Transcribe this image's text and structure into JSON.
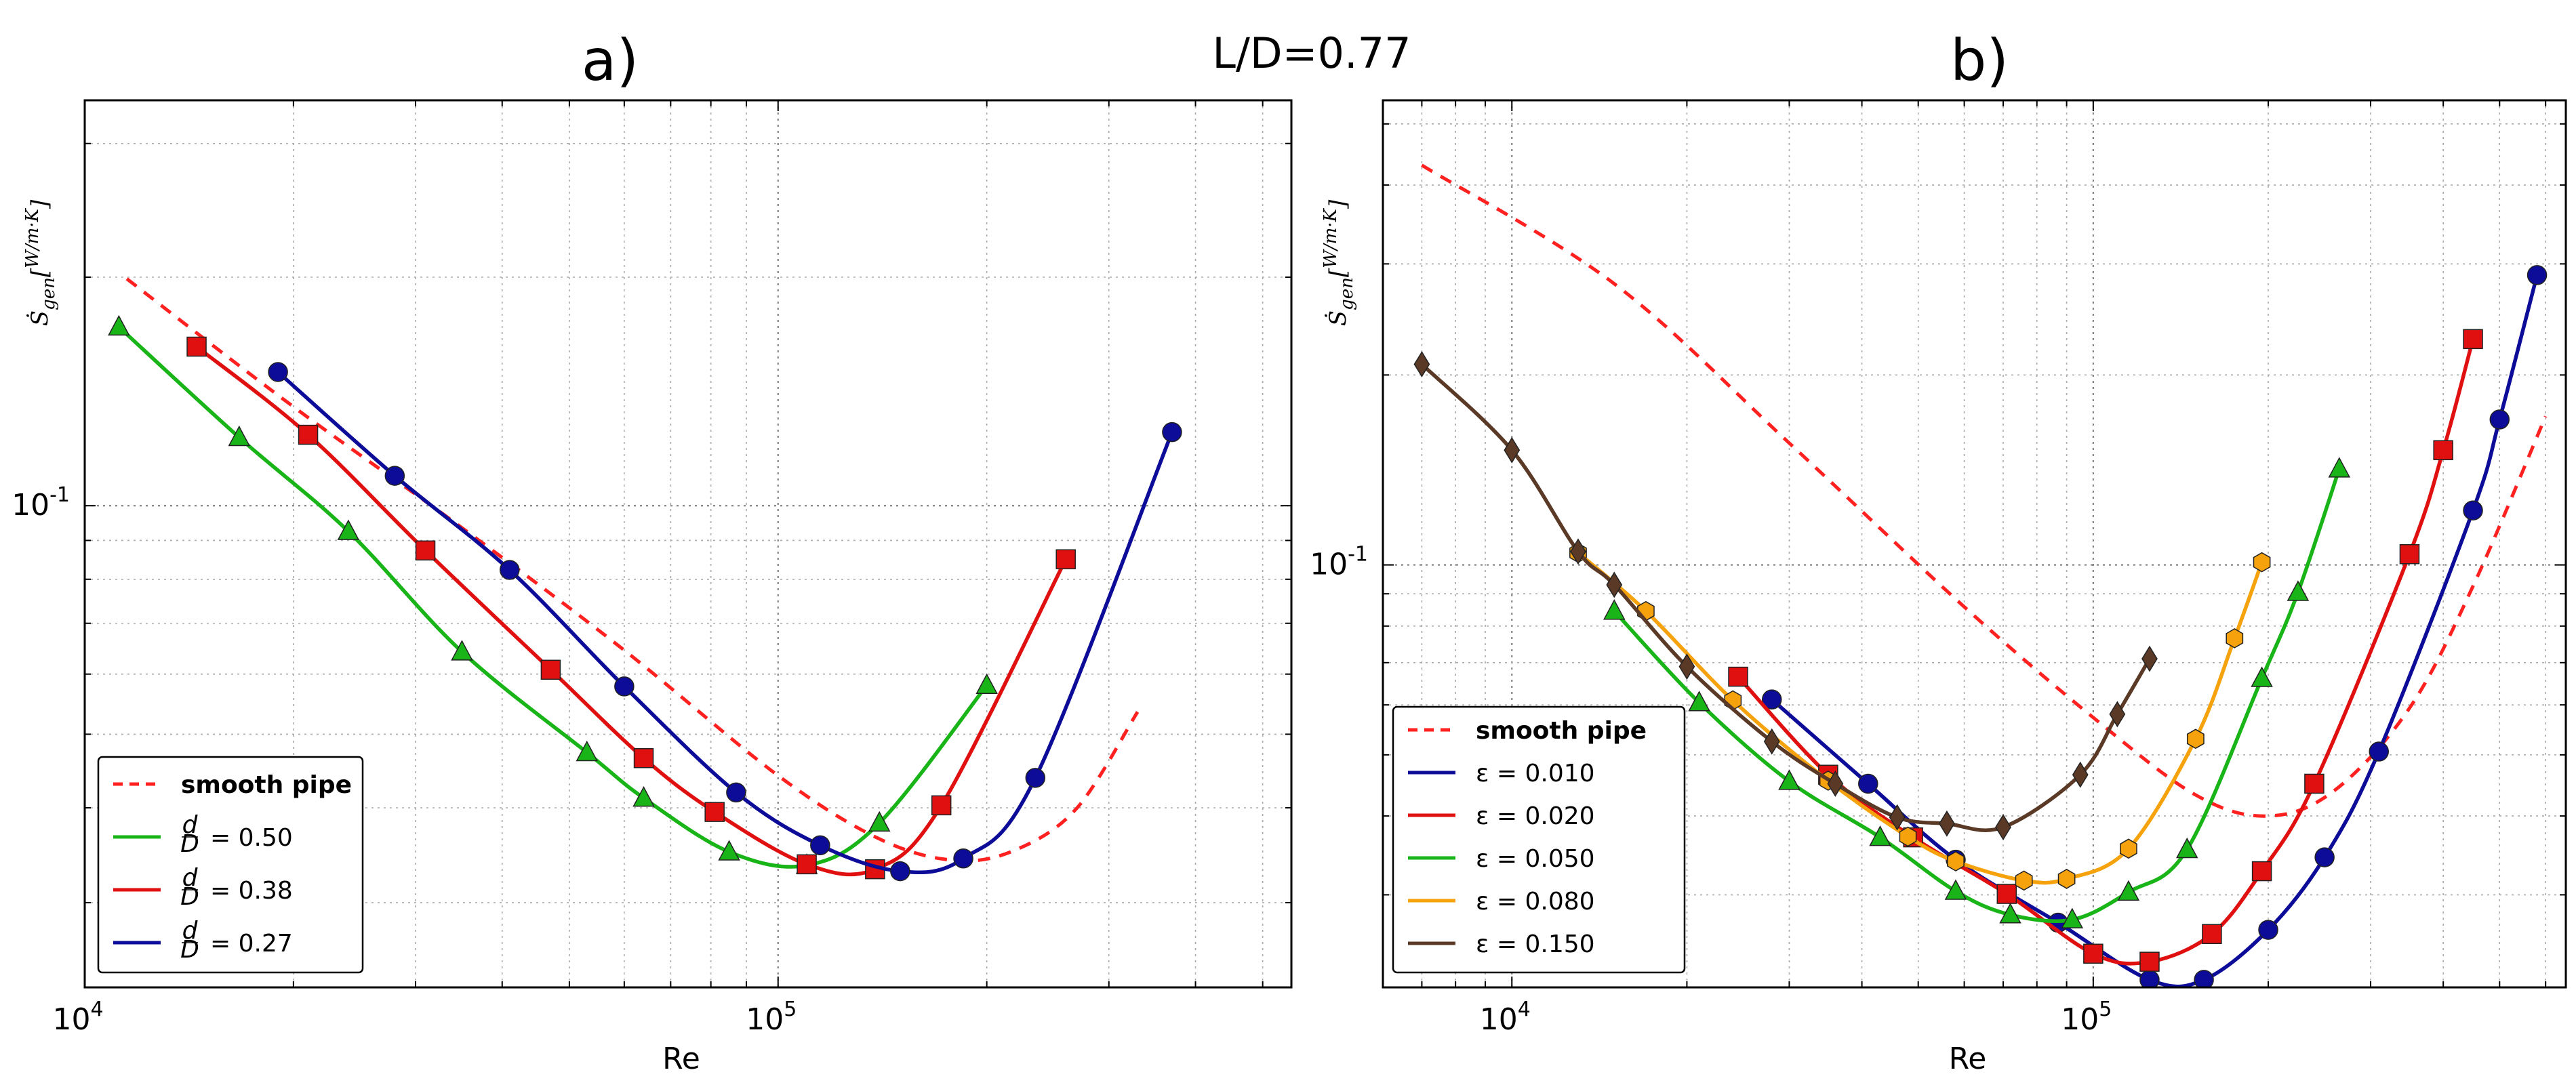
{
  "figure": {
    "suptitle": "L/D=0.77"
  },
  "chart_data": [
    {
      "panel": "a)",
      "type": "line",
      "xscale": "log",
      "yscale": "log",
      "xlabel": "Re",
      "ylabel": "Ṡ_gen[W/(m·K)]",
      "ylabel_main": "Ṡ",
      "ylabel_sub": "gen",
      "ylabel_num": "W",
      "ylabel_den": "m·K",
      "xlim": [
        10000,
        550000
      ],
      "ylim": [
        0.0232,
        0.342
      ],
      "x_ticks": [
        {
          "base": "10",
          "exp": "4"
        },
        {
          "base": "10",
          "exp": "5"
        }
      ],
      "y_ticks": [
        {
          "base": "10",
          "exp": "-1"
        }
      ],
      "legend_position": "lower left",
      "series": [
        {
          "name": "smooth pipe",
          "label": "smooth pipe",
          "color": "#ff2020",
          "style": "dashed",
          "marker": "none",
          "x": [
            11500,
            20000,
            35000,
            60000,
            100000,
            140000,
            180000,
            220000,
            270000,
            330000
          ],
          "y": [
            0.199,
            0.135,
            0.0935,
            0.0645,
            0.0441,
            0.0364,
            0.0341,
            0.0352,
            0.04,
            0.0535
          ]
        },
        {
          "name": "d/D = 0.50",
          "label_prefix": "d",
          "label_den": "D",
          "label_value": "= 0.50",
          "color": "#18b418",
          "style": "solid",
          "marker": "triangle",
          "x": [
            11200,
            16700,
            24000,
            35000,
            53000,
            64000,
            85000,
            110000,
            140000,
            200000
          ],
          "y": [
            0.172,
            0.123,
            0.0925,
            0.0642,
            0.0473,
            0.0412,
            0.035,
            0.0336,
            0.0382,
            0.058
          ]
        },
        {
          "name": "d/D = 0.38",
          "label_prefix": "d",
          "label_den": "D",
          "label_value": "= 0.38",
          "color": "#e01010",
          "style": "solid",
          "marker": "square",
          "x": [
            14500,
            21000,
            31000,
            47000,
            64000,
            81000,
            110000,
            138000,
            172000,
            260000
          ],
          "y": [
            0.162,
            0.124,
            0.0873,
            0.0608,
            0.0465,
            0.0395,
            0.0337,
            0.0332,
            0.0403,
            0.085
          ]
        },
        {
          "name": "d/D = 0.27",
          "label_prefix": "d",
          "label_den": "D",
          "label_value": "= 0.27",
          "color": "#0c0c98",
          "style": "solid",
          "marker": "circle",
          "x": [
            19000,
            28000,
            41000,
            60000,
            87000,
            115000,
            150000,
            185000,
            235000,
            370000
          ],
          "y": [
            0.15,
            0.1095,
            0.0823,
            0.0578,
            0.0419,
            0.0357,
            0.033,
            0.0343,
            0.0438,
            0.125
          ]
        }
      ]
    },
    {
      "panel": "b)",
      "type": "line",
      "xscale": "log",
      "yscale": "log",
      "xlabel": "Re",
      "ylabel": "Ṡ_gen[W/(m·K)]",
      "ylabel_main": "Ṡ",
      "ylabel_sub": "gen",
      "ylabel_num": "W",
      "ylabel_den": "m·K",
      "xlim": [
        6000,
        650000
      ],
      "ylim": [
        0.0214,
        0.545
      ],
      "x_ticks": [
        {
          "base": "10",
          "exp": "4"
        },
        {
          "base": "10",
          "exp": "5"
        }
      ],
      "y_ticks": [
        {
          "base": "10",
          "exp": "-1"
        }
      ],
      "legend_position": "lower left",
      "series": [
        {
          "name": "smooth pipe",
          "label": "smooth pipe",
          "color": "#ff2020",
          "style": "dashed",
          "marker": "none",
          "x": [
            7000,
            15000,
            30000,
            60000,
            100000,
            150000,
            200000,
            260000,
            350000,
            450000,
            600000
          ],
          "y": [
            0.43,
            0.279,
            0.156,
            0.0858,
            0.0573,
            0.0432,
            0.04,
            0.0439,
            0.0593,
            0.0925,
            0.172
          ]
        },
        {
          "name": "ε = 0.010",
          "label": "ε = 0.010",
          "color": "#0c0c98",
          "style": "solid",
          "marker": "circle",
          "x": [
            28000,
            41000,
            58000,
            87000,
            125000,
            155000,
            200000,
            250000,
            310000,
            450000,
            500000,
            580000
          ],
          "y": [
            0.0612,
            0.045,
            0.0341,
            0.0271,
            0.022,
            0.022,
            0.0264,
            0.0344,
            0.0506,
            0.122,
            0.17,
            0.288
          ]
        },
        {
          "name": "ε = 0.020",
          "label": "ε = 0.020",
          "color": "#e01010",
          "style": "solid",
          "marker": "square",
          "x": [
            24500,
            35000,
            49000,
            71000,
            100000,
            125000,
            160000,
            195000,
            240000,
            350000,
            400000,
            450000
          ],
          "y": [
            0.0665,
            0.0465,
            0.037,
            0.0301,
            0.0242,
            0.0235,
            0.026,
            0.0327,
            0.045,
            0.104,
            0.152,
            0.228
          ]
        },
        {
          "name": "ε = 0.050",
          "label": "ε = 0.050",
          "color": "#18b418",
          "style": "solid",
          "marker": "triangle",
          "x": [
            15000,
            21000,
            30000,
            43000,
            58000,
            72000,
            92000,
            115000,
            145000,
            195000,
            225000,
            265000
          ],
          "y": [
            0.0845,
            0.0605,
            0.0454,
            0.037,
            0.0304,
            0.0279,
            0.0274,
            0.0303,
            0.0354,
            0.0661,
            0.0905,
            0.142
          ]
        },
        {
          "name": "ε = 0.080",
          "label": "ε = 0.080",
          "color": "#f5a20c",
          "style": "solid",
          "marker": "hexagon",
          "x": [
            13000,
            17000,
            24000,
            35000,
            48000,
            58000,
            76000,
            90000,
            115000,
            150000,
            175000,
            195000
          ],
          "y": [
            0.1045,
            0.0845,
            0.061,
            0.0455,
            0.0371,
            0.0339,
            0.0316,
            0.0318,
            0.0355,
            0.053,
            0.0765,
            0.101
          ]
        },
        {
          "name": "ε = 0.150",
          "label": "ε = 0.150",
          "color": "#5a3a26",
          "style": "solid",
          "marker": "diamond",
          "x": [
            7000,
            10000,
            13000,
            15000,
            20000,
            28000,
            36000,
            46000,
            56000,
            70000,
            95000,
            110000,
            125000
          ],
          "y": [
            0.208,
            0.152,
            0.105,
            0.093,
            0.069,
            0.0525,
            0.045,
            0.0398,
            0.0389,
            0.0384,
            0.0465,
            0.058,
            0.071
          ]
        }
      ]
    }
  ]
}
